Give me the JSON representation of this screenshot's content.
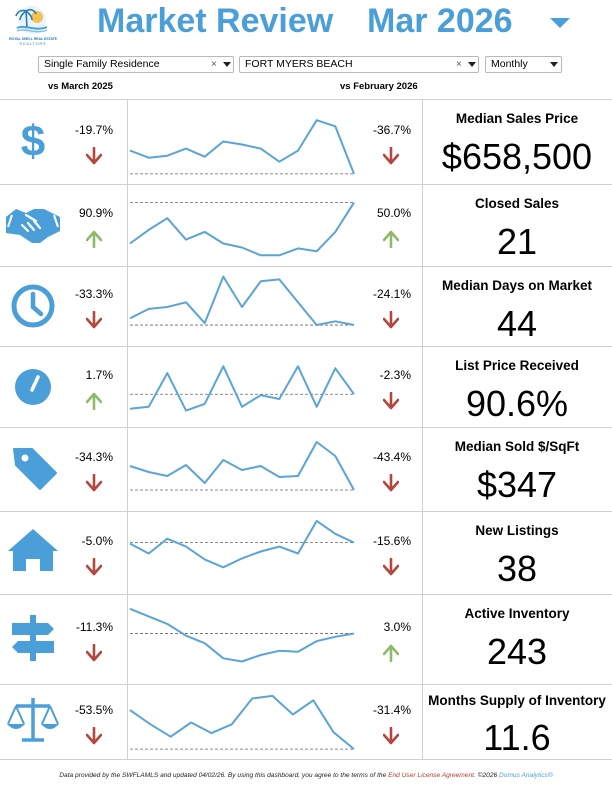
{
  "header": {
    "title": "Market Review",
    "period": "Mar 2026",
    "logo_text": "ROYAL SHELL REAL ESTATE",
    "logo_subtext": "REALTORS"
  },
  "filters": {
    "property_type": "Single Family Residence",
    "area": "FORT MYERS BEACH",
    "interval": "Monthly",
    "clear_glyph": "×"
  },
  "columns": {
    "yoy": "vs March 2025",
    "mom": "vs February 2026"
  },
  "colors": {
    "accent": "#4a9fd8",
    "up": "#8fba6a",
    "down": "#b5463d",
    "line": "#5aa4d8"
  },
  "metrics": [
    {
      "icon": "dollar-icon",
      "label": "Median Sales Price",
      "value": "$658,500",
      "yoy": "-19.7%",
      "yoy_dir": "down",
      "mom": "-36.7%",
      "mom_dir": "down",
      "series": [
        48,
        55,
        53,
        46,
        54,
        39,
        42,
        46,
        59,
        48,
        18,
        24,
        71
      ],
      "ref": 71,
      "ref_side": "bottom"
    },
    {
      "icon": "handshake-icon",
      "label": "Closed Sales",
      "value": "21",
      "yoy": "90.9%",
      "yoy_dir": "up",
      "mom": "50.0%",
      "mom_dir": "up",
      "series": [
        58,
        44,
        32,
        54,
        46,
        58,
        62,
        70,
        70,
        63,
        66,
        46,
        16
      ],
      "ref": 16,
      "ref_side": "top"
    },
    {
      "icon": "clock-icon",
      "label": "Median Days on Market",
      "value": "44",
      "yoy": "-33.3%",
      "yoy_dir": "down",
      "mom": "-24.1%",
      "mom_dir": "down",
      "series": [
        52,
        42,
        40,
        35,
        57,
        8,
        40,
        13,
        11,
        35,
        59,
        55,
        59
      ],
      "ref": 59,
      "ref_side": "bottom"
    },
    {
      "icon": "gauge-icon",
      "label": "List Price Received",
      "value": "90.6%",
      "yoy": "1.7%",
      "yoy_dir": "up",
      "mom": "-2.3%",
      "mom_dir": "down",
      "series": [
        62,
        60,
        25,
        64,
        57,
        18,
        60,
        48,
        52,
        18,
        60,
        20,
        47
      ],
      "ref": 47,
      "ref_side": "mid"
    },
    {
      "icon": "tag-icon",
      "label": "Median Sold $/SqFt",
      "value": "$347",
      "yoy": "-34.3%",
      "yoy_dir": "down",
      "mom": "-43.4%",
      "mom_dir": "down",
      "series": [
        36,
        42,
        46,
        35,
        53,
        30,
        40,
        36,
        47,
        46,
        12,
        26,
        60
      ],
      "ref": 60,
      "ref_side": "bottom"
    },
    {
      "icon": "house-icon",
      "label": "New Listings",
      "value": "38",
      "yoy": "-5.0%",
      "yoy_dir": "down",
      "mom": "-15.6%",
      "mom_dir": "down",
      "series": [
        30,
        40,
        25,
        33,
        46,
        54,
        45,
        38,
        33,
        40,
        7,
        20,
        29
      ],
      "ref": 29,
      "ref_side": "mid"
    },
    {
      "icon": "signpost-icon",
      "label": "Active Inventory",
      "value": "243",
      "yoy": "-11.3%",
      "yoy_dir": "down",
      "mom": "3.0%",
      "mom_dir": "up",
      "series": [
        11,
        18,
        25,
        36,
        43,
        57,
        60,
        54,
        50,
        51,
        41,
        37,
        34
      ],
      "ref": 34,
      "ref_side": "mid"
    },
    {
      "icon": "scale-icon",
      "label": "Months Supply of Inventory",
      "value": "11.6",
      "yoy": "-53.5%",
      "yoy_dir": "down",
      "mom": "-31.4%",
      "mom_dir": "down",
      "series": [
        26,
        42,
        56,
        40,
        52,
        42,
        13,
        10,
        31,
        15,
        51,
        70
      ],
      "ref": 70,
      "ref_side": "bottom"
    }
  ],
  "footer": {
    "text": "Data provided by the SWFLAMLS and updated 04/02/26.  By using this dashboard, you agree to the terms of the ",
    "link": "End User License Agreement.",
    "copyright": "  ©2026 ",
    "brand": "Domus Analytics®"
  }
}
